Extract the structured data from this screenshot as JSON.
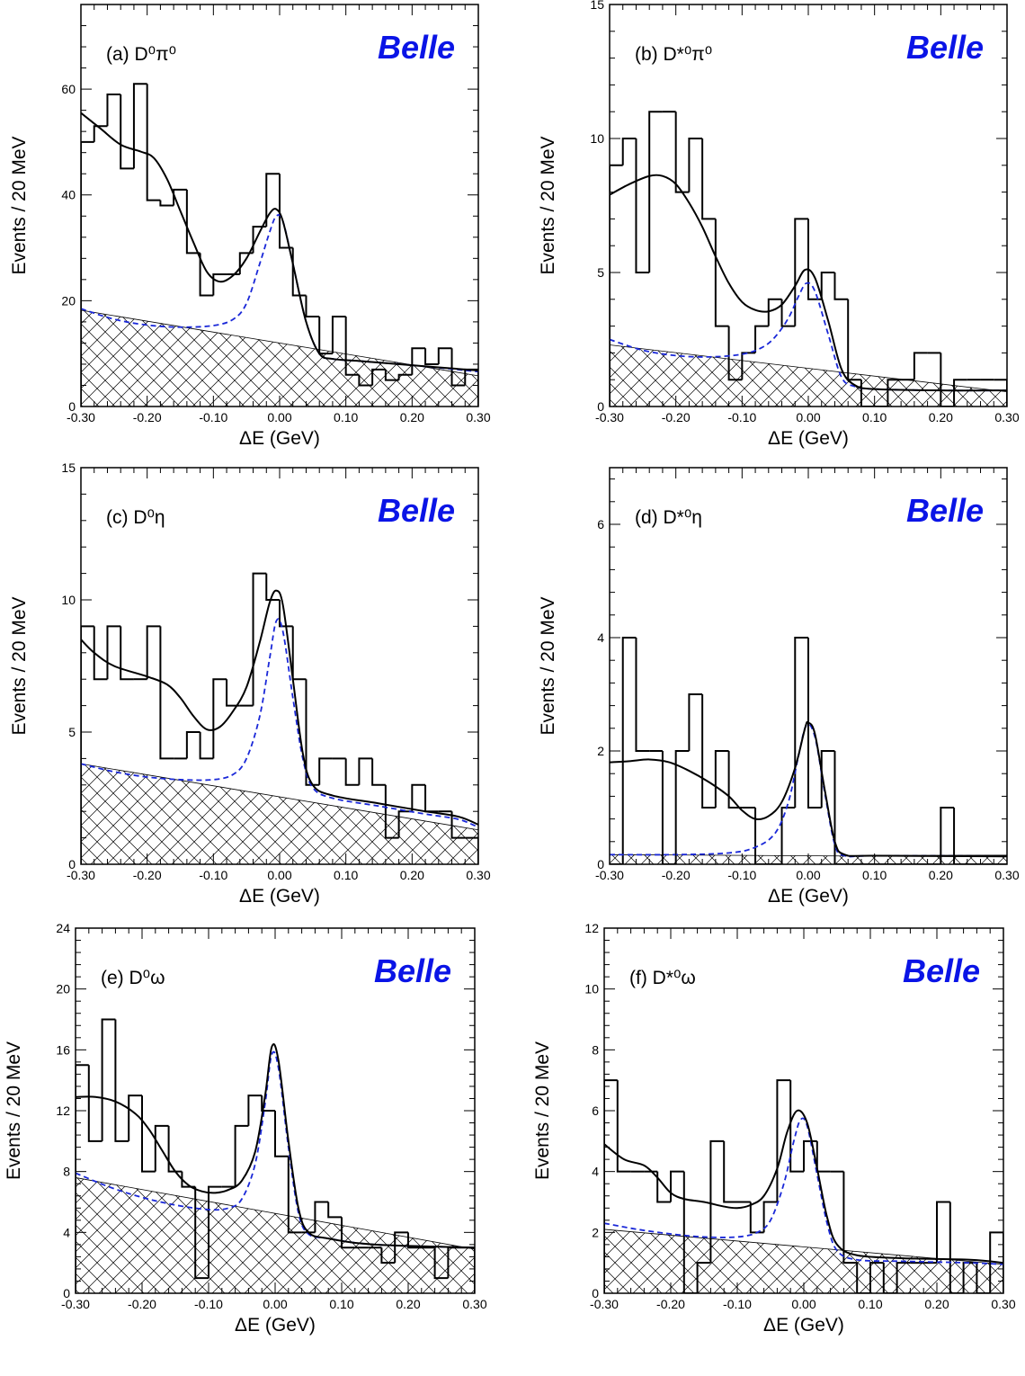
{
  "figure": {
    "y_axis_title": "Events / 20 MeV",
    "belle_label": "Belle",
    "belle_color": "#0a14e6",
    "fit_color": "#000000",
    "background_color": "#1a28d8"
  },
  "chart_data": [
    {
      "type": "histogram",
      "panel": "(a)",
      "panel_label": "(a)  D⁰π⁰",
      "xlabel": "ΔE (GeV)",
      "ylabel": "Events / 20 MeV",
      "xlim": [
        -0.3,
        0.3
      ],
      "ylim": [
        0,
        76
      ],
      "x_ticks": [
        "-0.30",
        "-0.20",
        "-0.10",
        "0.00",
        "0.10",
        "0.20",
        "0.30"
      ],
      "y_ticks": [
        0,
        20,
        40,
        60
      ],
      "bin_width": 0.02,
      "counts": [
        50,
        53,
        59,
        45,
        61,
        39,
        38,
        41,
        29,
        21,
        25,
        25,
        29,
        34,
        44,
        30,
        21,
        17,
        10,
        17,
        6,
        4,
        7,
        5,
        6,
        11,
        8,
        11,
        4,
        7
      ],
      "total_fit": [
        [
          -0.3,
          55.5
        ],
        [
          -0.27,
          52.5
        ],
        [
          -0.24,
          49.5
        ],
        [
          -0.21,
          48.2
        ],
        [
          -0.19,
          47
        ],
        [
          -0.17,
          43
        ],
        [
          -0.15,
          37
        ],
        [
          -0.13,
          31
        ],
        [
          -0.11,
          25.5
        ],
        [
          -0.09,
          23.6
        ],
        [
          -0.07,
          24.8
        ],
        [
          -0.05,
          28
        ],
        [
          -0.03,
          33
        ],
        [
          -0.015,
          36.5
        ],
        [
          -0.005,
          37.3
        ],
        [
          0.005,
          35
        ],
        [
          0.02,
          27
        ],
        [
          0.04,
          16
        ],
        [
          0.06,
          10
        ],
        [
          0.08,
          9
        ],
        [
          0.12,
          8.6
        ],
        [
          0.2,
          7.8
        ],
        [
          0.3,
          6.8
        ]
      ],
      "background_fit": [
        [
          -0.3,
          18.5
        ],
        [
          -0.25,
          16.5
        ],
        [
          -0.2,
          15.4
        ],
        [
          -0.15,
          15
        ],
        [
          -0.1,
          15.3
        ],
        [
          -0.07,
          16.5
        ],
        [
          -0.05,
          19.5
        ],
        [
          -0.03,
          27
        ],
        [
          -0.015,
          33
        ],
        [
          -0.005,
          36
        ],
        [
          0.005,
          35
        ],
        [
          0.02,
          27
        ],
        [
          0.04,
          16
        ],
        [
          0.06,
          10
        ],
        [
          0.08,
          9
        ],
        [
          0.12,
          8.6
        ],
        [
          0.2,
          7.8
        ],
        [
          0.3,
          6.6
        ]
      ],
      "hatched_region": [
        [
          -0.3,
          18.2
        ],
        [
          0.3,
          5.8
        ]
      ]
    },
    {
      "type": "histogram",
      "panel": "(b)",
      "panel_label": "(b)  D*⁰π⁰",
      "xlabel": "ΔE (GeV)",
      "ylabel": "Events / 20 MeV",
      "xlim": [
        -0.3,
        0.3
      ],
      "ylim": [
        0,
        15
      ],
      "x_ticks": [
        "-0.30",
        "-0.20",
        "-0.10",
        "0.00",
        "0.10",
        "0.20",
        "0.30"
      ],
      "y_ticks": [
        0,
        5,
        10,
        15
      ],
      "bin_width": 0.02,
      "counts": [
        9,
        10,
        5,
        11,
        11,
        8,
        10,
        7,
        3,
        1,
        2,
        3,
        4,
        3,
        7,
        4,
        5,
        4,
        1,
        0,
        0,
        1,
        1,
        2,
        2,
        0,
        1,
        1,
        1,
        1
      ],
      "total_fit": [
        [
          -0.3,
          7.9
        ],
        [
          -0.27,
          8.3
        ],
        [
          -0.24,
          8.6
        ],
        [
          -0.22,
          8.6
        ],
        [
          -0.2,
          8.3
        ],
        [
          -0.18,
          7.6
        ],
        [
          -0.16,
          6.7
        ],
        [
          -0.14,
          5.6
        ],
        [
          -0.12,
          4.6
        ],
        [
          -0.1,
          3.9
        ],
        [
          -0.08,
          3.6
        ],
        [
          -0.06,
          3.55
        ],
        [
          -0.04,
          3.8
        ],
        [
          -0.02,
          4.5
        ],
        [
          -0.005,
          5.1
        ],
        [
          0.01,
          4.8
        ],
        [
          0.03,
          3.2
        ],
        [
          0.05,
          1.4
        ],
        [
          0.07,
          0.8
        ],
        [
          0.1,
          0.65
        ],
        [
          0.2,
          0.6
        ],
        [
          0.3,
          0.6
        ]
      ],
      "background_fit": [
        [
          -0.3,
          2.5
        ],
        [
          -0.25,
          2.1
        ],
        [
          -0.2,
          1.9
        ],
        [
          -0.15,
          1.85
        ],
        [
          -0.1,
          1.95
        ],
        [
          -0.07,
          2.2
        ],
        [
          -0.05,
          2.6
        ],
        [
          -0.03,
          3.3
        ],
        [
          -0.015,
          4.1
        ],
        [
          -0.003,
          4.6
        ],
        [
          0.01,
          4.3
        ],
        [
          0.03,
          2.7
        ],
        [
          0.05,
          1.1
        ],
        [
          0.07,
          0.75
        ],
        [
          0.1,
          0.65
        ],
        [
          0.2,
          0.6
        ],
        [
          0.3,
          0.6
        ]
      ],
      "hatched_region": [
        [
          -0.3,
          2.3
        ],
        [
          0.3,
          0.55
        ]
      ]
    },
    {
      "type": "histogram",
      "panel": "(c)",
      "panel_label": "(c)  D⁰η",
      "xlabel": "ΔE    (GeV)",
      "ylabel": "Events / 20 MeV",
      "xlim": [
        -0.3,
        0.3
      ],
      "ylim": [
        0,
        15
      ],
      "x_ticks": [
        "-0.30",
        "-0.20",
        "-0.10",
        "0.00",
        "0.10",
        "0.20",
        "0.30"
      ],
      "y_ticks": [
        0,
        5,
        10,
        15
      ],
      "bin_width": 0.02,
      "counts": [
        9,
        7,
        9,
        7,
        7,
        9,
        4,
        4,
        5,
        4,
        7,
        6,
        6,
        11,
        10,
        9,
        7,
        3,
        4,
        4,
        3,
        4,
        3,
        1,
        2,
        3,
        2,
        2,
        1,
        1
      ],
      "total_fit": [
        [
          -0.3,
          8.5
        ],
        [
          -0.28,
          8
        ],
        [
          -0.25,
          7.5
        ],
        [
          -0.2,
          7.1
        ],
        [
          -0.17,
          6.8
        ],
        [
          -0.15,
          6.3
        ],
        [
          -0.13,
          5.6
        ],
        [
          -0.11,
          5.1
        ],
        [
          -0.09,
          5.2
        ],
        [
          -0.07,
          5.8
        ],
        [
          -0.05,
          6.7
        ],
        [
          -0.03,
          8.4
        ],
        [
          -0.015,
          9.9
        ],
        [
          -0.005,
          10.35
        ],
        [
          0.005,
          9.8
        ],
        [
          0.02,
          7
        ],
        [
          0.035,
          4.2
        ],
        [
          0.05,
          3
        ],
        [
          0.08,
          2.6
        ],
        [
          0.15,
          2.3
        ],
        [
          0.22,
          2
        ],
        [
          0.27,
          1.8
        ],
        [
          0.3,
          1.5
        ]
      ],
      "background_fit": [
        [
          -0.3,
          3.8
        ],
        [
          -0.25,
          3.5
        ],
        [
          -0.2,
          3.3
        ],
        [
          -0.15,
          3.2
        ],
        [
          -0.1,
          3.2
        ],
        [
          -0.07,
          3.4
        ],
        [
          -0.05,
          4
        ],
        [
          -0.03,
          5.6
        ],
        [
          -0.015,
          7.8
        ],
        [
          -0.005,
          9.2
        ],
        [
          0.005,
          8.8
        ],
        [
          0.02,
          6.3
        ],
        [
          0.035,
          4
        ],
        [
          0.05,
          2.9
        ],
        [
          0.08,
          2.5
        ],
        [
          0.15,
          2.2
        ],
        [
          0.22,
          1.9
        ],
        [
          0.27,
          1.7
        ],
        [
          0.3,
          1.4
        ]
      ],
      "hatched_region": [
        [
          -0.3,
          3.8
        ],
        [
          0.3,
          1.3
        ]
      ]
    },
    {
      "type": "histogram",
      "panel": "(d)",
      "panel_label": "(d)  D*⁰η",
      "xlabel": "ΔE    (GeV)",
      "ylabel": "Events / 20 MeV",
      "xlim": [
        -0.3,
        0.3
      ],
      "ylim": [
        0,
        7
      ],
      "x_ticks": [
        "-0.30",
        "-0.20",
        "-0.10",
        "0.00",
        "0.10",
        "0.20",
        "0.30"
      ],
      "y_ticks": [
        0,
        2,
        4,
        6
      ],
      "bin_width": 0.02,
      "counts": [
        0,
        4,
        2,
        2,
        0,
        2,
        3,
        1,
        2,
        1,
        1,
        0,
        0,
        1,
        4,
        1,
        2,
        0,
        0,
        0,
        0,
        0,
        0,
        0,
        0,
        1,
        0,
        0,
        0,
        0
      ],
      "total_fit": [
        [
          -0.3,
          1.8
        ],
        [
          -0.27,
          1.82
        ],
        [
          -0.24,
          1.85
        ],
        [
          -0.21,
          1.8
        ],
        [
          -0.18,
          1.65
        ],
        [
          -0.15,
          1.45
        ],
        [
          -0.12,
          1.2
        ],
        [
          -0.1,
          0.95
        ],
        [
          -0.08,
          0.8
        ],
        [
          -0.06,
          0.85
        ],
        [
          -0.04,
          1.1
        ],
        [
          -0.02,
          1.7
        ],
        [
          -0.005,
          2.4
        ],
        [
          0,
          2.5
        ],
        [
          0.01,
          2.3
        ],
        [
          0.025,
          1.3
        ],
        [
          0.04,
          0.4
        ],
        [
          0.055,
          0.17
        ],
        [
          0.1,
          0.15
        ],
        [
          0.3,
          0.15
        ]
      ],
      "background_fit": [
        [
          -0.3,
          0.17
        ],
        [
          -0.2,
          0.17
        ],
        [
          -0.12,
          0.2
        ],
        [
          -0.08,
          0.3
        ],
        [
          -0.05,
          0.55
        ],
        [
          -0.03,
          1.1
        ],
        [
          -0.015,
          1.9
        ],
        [
          -0.003,
          2.45
        ],
        [
          0.01,
          2.25
        ],
        [
          0.025,
          1.25
        ],
        [
          0.04,
          0.35
        ],
        [
          0.055,
          0.15
        ],
        [
          0.1,
          0.15
        ],
        [
          0.3,
          0.15
        ]
      ],
      "hatched_region": [
        [
          -0.3,
          0.17
        ],
        [
          0.3,
          0.13
        ]
      ]
    },
    {
      "type": "histogram",
      "panel": "(e)",
      "panel_label": "(e)  D⁰ω",
      "xlabel": "ΔE (GeV)",
      "ylabel": "Events / 20 MeV",
      "xlim": [
        -0.3,
        0.3
      ],
      "ylim": [
        0,
        24
      ],
      "x_ticks": [
        "-0.30",
        "-0.20",
        "-0.10",
        "0.00",
        "0.10",
        "0.20",
        "0.30"
      ],
      "y_ticks": [
        0,
        4,
        8,
        12,
        16,
        20,
        24
      ],
      "bin_width": 0.02,
      "counts": [
        15,
        10,
        18,
        10,
        13,
        8,
        11,
        8,
        7,
        1,
        7,
        7,
        11,
        13,
        12,
        9,
        4,
        4,
        6,
        5,
        3,
        3,
        3,
        2,
        4,
        3,
        3,
        1,
        3,
        3
      ],
      "total_fit": [
        [
          -0.3,
          12.9
        ],
        [
          -0.27,
          12.9
        ],
        [
          -0.24,
          12.6
        ],
        [
          -0.21,
          11.8
        ],
        [
          -0.19,
          10.8
        ],
        [
          -0.17,
          9.4
        ],
        [
          -0.15,
          8
        ],
        [
          -0.13,
          7.1
        ],
        [
          -0.11,
          6.7
        ],
        [
          -0.09,
          6.6
        ],
        [
          -0.07,
          6.8
        ],
        [
          -0.05,
          7.4
        ],
        [
          -0.03,
          9.3
        ],
        [
          -0.015,
          13
        ],
        [
          -0.005,
          16.2
        ],
        [
          0.005,
          15.3
        ],
        [
          0.02,
          10
        ],
        [
          0.035,
          5.6
        ],
        [
          0.05,
          4
        ],
        [
          0.08,
          3.6
        ],
        [
          0.15,
          3.2
        ],
        [
          0.3,
          3
        ]
      ],
      "background_fit": [
        [
          -0.3,
          7.9
        ],
        [
          -0.25,
          7
        ],
        [
          -0.2,
          6.3
        ],
        [
          -0.15,
          5.8
        ],
        [
          -0.1,
          5.5
        ],
        [
          -0.07,
          5.6
        ],
        [
          -0.05,
          6.2
        ],
        [
          -0.03,
          8.5
        ],
        [
          -0.015,
          12.5
        ],
        [
          -0.005,
          15.7
        ],
        [
          0.005,
          14.8
        ],
        [
          0.02,
          9.6
        ],
        [
          0.035,
          5.3
        ],
        [
          0.05,
          3.9
        ],
        [
          0.08,
          3.6
        ],
        [
          0.15,
          3.2
        ],
        [
          0.3,
          3
        ]
      ],
      "hatched_region": [
        [
          -0.3,
          7.6
        ],
        [
          0.3,
          2.9
        ]
      ]
    },
    {
      "type": "histogram",
      "panel": "(f)",
      "panel_label": "(f)  D*⁰ω",
      "xlabel": "ΔE (GeV)",
      "ylabel": "Events / 20 MeV",
      "xlim": [
        -0.3,
        0.3
      ],
      "ylim": [
        0,
        12
      ],
      "x_ticks": [
        "-0.30",
        "-0.20",
        "-0.10",
        "0.00",
        "0.10",
        "0.20",
        "0.30"
      ],
      "y_ticks": [
        0,
        2,
        4,
        6,
        8,
        10,
        12
      ],
      "bin_width": 0.02,
      "counts": [
        7,
        4,
        4,
        4,
        3,
        4,
        0,
        1,
        5,
        3,
        3,
        2,
        3,
        7,
        4,
        5,
        4,
        4,
        1,
        0,
        1,
        0,
        1,
        1,
        1,
        3,
        0,
        1,
        0,
        2
      ],
      "total_fit": [
        [
          -0.3,
          4.9
        ],
        [
          -0.27,
          4.4
        ],
        [
          -0.24,
          4.2
        ],
        [
          -0.22,
          3.8
        ],
        [
          -0.2,
          3.3
        ],
        [
          -0.18,
          3.1
        ],
        [
          -0.15,
          3
        ],
        [
          -0.12,
          2.85
        ],
        [
          -0.1,
          2.8
        ],
        [
          -0.08,
          2.9
        ],
        [
          -0.06,
          3.2
        ],
        [
          -0.04,
          4.1
        ],
        [
          -0.025,
          5.3
        ],
        [
          -0.01,
          6
        ],
        [
          0.005,
          5.6
        ],
        [
          0.02,
          4.1
        ],
        [
          0.035,
          2.5
        ],
        [
          0.05,
          1.6
        ],
        [
          0.08,
          1.25
        ],
        [
          0.15,
          1.15
        ],
        [
          0.25,
          1.1
        ],
        [
          0.3,
          1
        ]
      ],
      "background_fit": [
        [
          -0.3,
          2.3
        ],
        [
          -0.25,
          2.1
        ],
        [
          -0.2,
          1.95
        ],
        [
          -0.15,
          1.85
        ],
        [
          -0.1,
          1.85
        ],
        [
          -0.07,
          2
        ],
        [
          -0.05,
          2.4
        ],
        [
          -0.03,
          3.6
        ],
        [
          -0.015,
          5
        ],
        [
          -0.005,
          5.7
        ],
        [
          0.005,
          5.5
        ],
        [
          0.02,
          3.9
        ],
        [
          0.035,
          2.3
        ],
        [
          0.05,
          1.4
        ],
        [
          0.08,
          1.1
        ],
        [
          0.15,
          1.05
        ],
        [
          0.25,
          1
        ],
        [
          0.3,
          0.95
        ]
      ],
      "hatched_region": [
        [
          -0.3,
          2.1
        ],
        [
          0.3,
          0.95
        ]
      ]
    }
  ]
}
